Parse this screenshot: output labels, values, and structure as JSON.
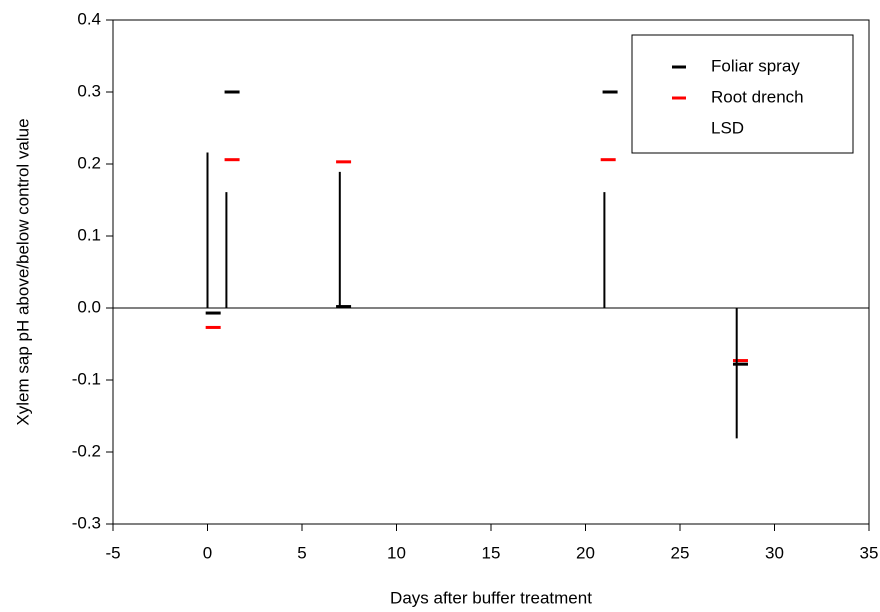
{
  "chart_data": {
    "type": "scatter",
    "x_label": "Days after buffer treatment",
    "y_label": "Xylem sap pH above/below control value",
    "xlim": [
      -5,
      35
    ],
    "xticks": [
      -5,
      0,
      5,
      10,
      15,
      20,
      25,
      30,
      35
    ],
    "ylim": [
      -0.3,
      0.4
    ],
    "yticks": [
      -0.3,
      -0.2,
      -0.1,
      {
        "value": 0,
        "label": "0.0"
      },
      0.1,
      0.2,
      0.3,
      0.4
    ],
    "legend": "upper right",
    "series": [
      {
        "name": "Foliar spray",
        "color": "#000000",
        "marker": "dash",
        "x": [
          0.3,
          1.3,
          7.2,
          21.3,
          28.2
        ],
        "values": [
          -0.007,
          0.3,
          0.002,
          0.3,
          -0.078
        ]
      },
      {
        "name": "Root drench",
        "color": "#ff0000",
        "marker": "dash",
        "x": [
          0.3,
          1.3,
          7.2,
          21.2,
          28.2
        ],
        "values": [
          -0.027,
          0.206,
          0.203,
          0.206,
          -0.073
        ]
      },
      {
        "name": "LSD",
        "color": "#000000",
        "marker": "vline",
        "x": [
          0,
          1,
          7,
          21,
          28
        ],
        "values": [
          0.216,
          0.161,
          0.189,
          0.161,
          -0.181
        ]
      }
    ]
  }
}
